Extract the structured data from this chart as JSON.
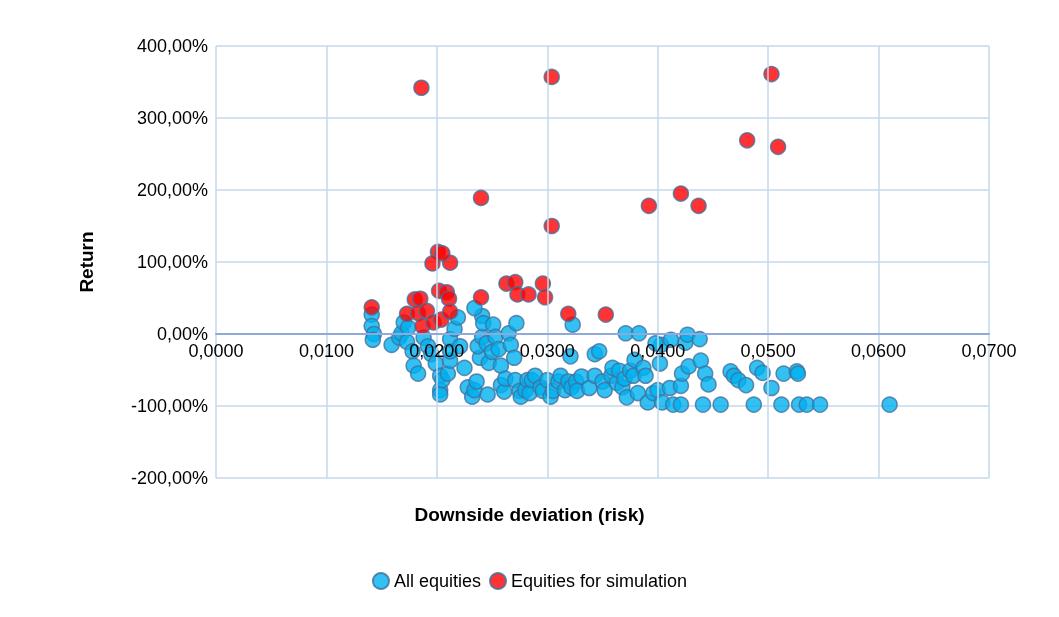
{
  "chart_data": {
    "type": "scatter",
    "xlabel": "Downside deviation (risk)",
    "ylabel": "Return",
    "xlim": [
      0,
      0.07
    ],
    "ylim": [
      -200,
      400
    ],
    "xticks": [
      {
        "value": 0,
        "label": "0,0000"
      },
      {
        "value": 0.01,
        "label": "0,0100"
      },
      {
        "value": 0.02,
        "label": "0,0200"
      },
      {
        "value": 0.03,
        "label": "0,0300"
      },
      {
        "value": 0.04,
        "label": "0,0400"
      },
      {
        "value": 0.05,
        "label": "0,0500"
      },
      {
        "value": 0.06,
        "label": "0,0600"
      },
      {
        "value": 0.07,
        "label": "0,0700"
      }
    ],
    "yticks": [
      {
        "value": -200,
        "label": "-200,00%"
      },
      {
        "value": -100,
        "label": "-100,00%"
      },
      {
        "value": 0,
        "label": "0,00%"
      },
      {
        "value": 100,
        "label": "100,00%"
      },
      {
        "value": 200,
        "label": "200,00%"
      },
      {
        "value": 300,
        "label": "300,00%"
      },
      {
        "value": 400,
        "label": "400,00%"
      }
    ],
    "grid": true,
    "legend": "bottom",
    "marker": "circle",
    "series": [
      {
        "name": "All equities",
        "color": "#00b0f0",
        "x": [
          0.0141,
          0.0141,
          0.0143,
          0.0142,
          0.0159,
          0.0166,
          0.0168,
          0.017,
          0.0174,
          0.0173,
          0.0178,
          0.0179,
          0.0183,
          0.0188,
          0.0192,
          0.0195,
          0.0199,
          0.0203,
          0.0203,
          0.0203,
          0.0205,
          0.021,
          0.0212,
          0.0212,
          0.0212,
          0.0216,
          0.0219,
          0.0221,
          0.0225,
          0.0228,
          0.0232,
          0.0234,
          0.0236,
          0.0239,
          0.0237,
          0.0241,
          0.0241,
          0.0234,
          0.0242,
          0.0245,
          0.0246,
          0.0247,
          0.025,
          0.0251,
          0.0253,
          0.0256,
          0.0258,
          0.0258,
          0.0261,
          0.0262,
          0.0265,
          0.0267,
          0.027,
          0.0271,
          0.0272,
          0.0275,
          0.0276,
          0.028,
          0.0282,
          0.0284,
          0.0286,
          0.0289,
          0.0294,
          0.0296,
          0.03,
          0.0303,
          0.0305,
          0.031,
          0.0312,
          0.0316,
          0.0319,
          0.0321,
          0.0322,
          0.0323,
          0.0326,
          0.0327,
          0.0331,
          0.0338,
          0.0343,
          0.0343,
          0.0347,
          0.035,
          0.0352,
          0.0358,
          0.0359,
          0.0363,
          0.0365,
          0.0368,
          0.037,
          0.0372,
          0.0375,
          0.0378,
          0.0379,
          0.0382,
          0.0387,
          0.0389,
          0.0391,
          0.0396,
          0.04,
          0.0402,
          0.0403,
          0.0404,
          0.0411,
          0.0414,
          0.0421,
          0.0421,
          0.0422,
          0.0425,
          0.0427,
          0.0428,
          0.0438,
          0.0439,
          0.0441,
          0.0443,
          0.0446,
          0.0457,
          0.0466,
          0.0469,
          0.0473,
          0.048,
          0.0487,
          0.049,
          0.0495,
          0.0503,
          0.0512,
          0.0514,
          0.0526,
          0.0527,
          0.0528,
          0.0535,
          0.0547,
          0.061,
          0.0371,
          0.0383,
          0.0412,
          0.0398
        ],
        "values": [
          27,
          11,
          0,
          -8,
          -15,
          -5,
          1,
          16,
          9,
          -11,
          -24,
          -44,
          -55,
          -5,
          -17,
          -28,
          -41,
          -58,
          -78,
          -84,
          -64,
          -55,
          -37,
          -24,
          -7,
          7,
          23,
          -17,
          -47,
          -74,
          -87,
          -78,
          -66,
          -33,
          -17,
          -4,
          25,
          36,
          15,
          -13,
          -84,
          -40,
          -25,
          13,
          -4,
          -21,
          -44,
          -71,
          -80,
          -62,
          1,
          -15,
          -33,
          -64,
          15,
          -79,
          -87,
          -78,
          -64,
          -82,
          -64,
          -58,
          -74,
          -79,
          -64,
          -87,
          -79,
          -66,
          -58,
          -78,
          -66,
          -31,
          -74,
          13,
          -66,
          -79,
          -59,
          -75,
          -58,
          -28,
          -24,
          -66,
          -78,
          -58,
          -47,
          -68,
          -51,
          -74,
          -62,
          -88,
          -51,
          -58,
          -36,
          -82,
          -47,
          -58,
          -95,
          -82,
          -78,
          -41,
          -15,
          -95,
          -75,
          -98,
          -72,
          -98,
          -55,
          -12,
          -1,
          -45,
          -7,
          -37,
          -98,
          -55,
          -70,
          -98,
          -52,
          -58,
          -64,
          -71,
          -98,
          -47,
          -54,
          -75,
          -98,
          -55,
          -52,
          -55,
          -98,
          -98,
          -98,
          -98,
          1,
          1,
          -8,
          -13
        ]
      },
      {
        "name": "Equities for simulation",
        "color": "#ff0000",
        "x": [
          0.0141,
          0.018,
          0.0185,
          0.0202,
          0.0209,
          0.0211,
          0.0173,
          0.0183,
          0.0191,
          0.0187,
          0.0197,
          0.0204,
          0.0212,
          0.024,
          0.0263,
          0.0271,
          0.0273,
          0.0283,
          0.0296,
          0.0298,
          0.0319,
          0.0353,
          0.0186,
          0.0304,
          0.0503,
          0.0481,
          0.0509,
          0.0421,
          0.0437,
          0.0392,
          0.024,
          0.0304,
          0.0201,
          0.0196,
          0.0212,
          0.0205
        ],
        "values": [
          37,
          48,
          49,
          60,
          58,
          49,
          28,
          29,
          32,
          11,
          16,
          20,
          31,
          51,
          70,
          72,
          55,
          55,
          70,
          51,
          28,
          27,
          342,
          357,
          361,
          269,
          260,
          195,
          178,
          178,
          189,
          150,
          114,
          98,
          99,
          112
        ]
      }
    ]
  }
}
